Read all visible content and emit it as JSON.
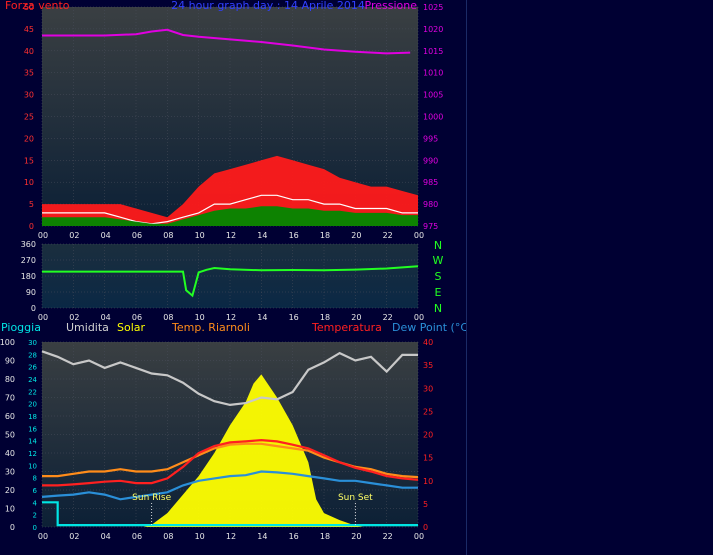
{
  "colors": {
    "background": "#000033",
    "panel_top": "#3a3f42",
    "panel_bottom": "#0b2540",
    "wind_gust": "#ff1a1a",
    "wind_avg": "#ffffff",
    "wind_speed": "#008800",
    "pressure": "#e000e0",
    "direction": "#22ff22",
    "humidity": "#c8c8c8",
    "solar": "#ffff00",
    "app_temp": "#ff8c1a",
    "temperature": "#ff2020",
    "dewpoint": "#2a8fd8",
    "rain": "#00e5e5"
  },
  "top": {
    "left_label": "Forza vento",
    "title": "24 hour graph day : 14 Aprile 2014",
    "right_label": "Pressione"
  },
  "direction": {
    "compass": [
      "N",
      "W",
      "S",
      "E",
      "N"
    ]
  },
  "bottom": {
    "legend": [
      "Pioggia",
      "Umidita",
      "Solar",
      "Temp. Riarnoli",
      "Temperatura",
      "Dew Point (°C)"
    ],
    "sunrise": "Sun Rise",
    "sunset": "Sun Set"
  },
  "chart_data": [
    {
      "type": "line",
      "title": "24 hour graph day : 14 Aprile 2014",
      "x_ticks": [
        "00",
        "02",
        "04",
        "06",
        "08",
        "10",
        "12",
        "14",
        "16",
        "18",
        "20",
        "22",
        "00"
      ],
      "y_left": {
        "label": "Forza vento",
        "ticks": [
          0,
          5,
          10,
          15,
          20,
          25,
          30,
          35,
          40,
          45,
          50
        ],
        "lim": [
          0,
          50
        ]
      },
      "y_right": {
        "label": "Pressione",
        "ticks": [
          975,
          980,
          985,
          990,
          995,
          1000,
          1005,
          1010,
          1015,
          1020,
          1025
        ],
        "lim": [
          975,
          1025
        ]
      },
      "grid": true,
      "series": [
        {
          "name": "Pressione",
          "axis": "right",
          "color": "#e000e0",
          "x": [
            0,
            2,
            4,
            6,
            7,
            8,
            9,
            10,
            12,
            14,
            16,
            18,
            20,
            22,
            23.5
          ],
          "y": [
            1018.5,
            1018.5,
            1018.5,
            1018.8,
            1019.4,
            1019.8,
            1018.6,
            1018.2,
            1017.6,
            1017.0,
            1016.2,
            1015.3,
            1014.8,
            1014.4,
            1014.6
          ]
        },
        {
          "name": "gust",
          "axis": "left",
          "color": "#ff1a1a",
          "x": [
            0,
            2,
            4,
            5,
            6,
            7,
            8,
            9,
            10,
            11,
            12,
            13,
            14,
            15,
            16,
            17,
            18,
            19,
            20,
            21,
            22,
            23,
            24
          ],
          "y": [
            5,
            5,
            5,
            5,
            4,
            3,
            2,
            5,
            9,
            12,
            13,
            14,
            15,
            16,
            15,
            14,
            13,
            11,
            10,
            9,
            9,
            8,
            7
          ]
        },
        {
          "name": "average",
          "axis": "left",
          "color": "#ffffff",
          "x": [
            0,
            2,
            4,
            5,
            6,
            7,
            8,
            9,
            10,
            11,
            12,
            13,
            14,
            15,
            16,
            17,
            18,
            19,
            20,
            21,
            22,
            23,
            24
          ],
          "y": [
            3,
            3,
            3,
            2,
            1,
            0.5,
            1,
            2,
            3,
            5,
            5,
            6,
            7,
            7,
            6,
            6,
            5,
            5,
            4,
            4,
            4,
            3,
            3
          ]
        },
        {
          "name": "speed",
          "axis": "left",
          "color": "#008800",
          "x": [
            0,
            2,
            4,
            5,
            6,
            7,
            8,
            9,
            10,
            11,
            12,
            13,
            14,
            15,
            16,
            17,
            18,
            19,
            20,
            21,
            22,
            23,
            24
          ],
          "y": [
            2,
            2,
            2,
            1.5,
            1,
            0.5,
            0.5,
            1.5,
            2.5,
            3.5,
            4,
            4,
            4.5,
            4.5,
            4,
            4,
            3.5,
            3.5,
            3,
            3,
            3,
            2.5,
            2.5
          ]
        }
      ]
    },
    {
      "type": "line",
      "x_ticks": [
        "00",
        "02",
        "04",
        "06",
        "08",
        "10",
        "12",
        "14",
        "16",
        "18",
        "20",
        "22",
        "00"
      ],
      "y_left": {
        "ticks": [
          0,
          90,
          180,
          270,
          360
        ],
        "lim": [
          0,
          360
        ]
      },
      "y_right": {
        "ticks": [
          "N",
          "W",
          "S",
          "E",
          "N"
        ]
      },
      "grid": true,
      "series": [
        {
          "name": "direction",
          "color": "#22ff22",
          "x": [
            0,
            9,
            9.2,
            9.6,
            10,
            10.5,
            11,
            12,
            14,
            16,
            18,
            20,
            22,
            24
          ],
          "y": [
            205,
            205,
            100,
            70,
            200,
            215,
            225,
            218,
            212,
            214,
            212,
            216,
            222,
            235
          ]
        }
      ]
    },
    {
      "type": "line",
      "x_ticks": [
        "00",
        "02",
        "04",
        "06",
        "08",
        "10",
        "12",
        "14",
        "16",
        "18",
        "20",
        "22",
        "00"
      ],
      "y_left_outer": {
        "label": "Umidita",
        "ticks": [
          0,
          10,
          20,
          30,
          40,
          50,
          60,
          70,
          80,
          90,
          100
        ],
        "lim": [
          0,
          100
        ]
      },
      "y_left_inner": {
        "label": "Pioggia",
        "ticks": [
          0,
          2,
          4,
          6,
          8,
          10,
          12,
          14,
          16,
          18,
          20,
          22,
          24,
          26,
          28,
          30
        ],
        "lim": [
          0,
          30
        ]
      },
      "y_right": {
        "label": "Temperatura",
        "ticks": [
          0,
          5,
          10,
          15,
          20,
          25,
          30,
          35,
          40
        ],
        "lim": [
          0,
          40
        ]
      },
      "annotations": [
        {
          "text": "Sun Rise",
          "x": 7
        },
        {
          "text": "Sun Set",
          "x": 20
        }
      ],
      "grid": true,
      "series": [
        {
          "name": "Umidita",
          "axis": "left_outer",
          "color": "#c8c8c8",
          "x": [
            0,
            1,
            2,
            3,
            4,
            5,
            6,
            7,
            8,
            9,
            10,
            11,
            12,
            13,
            14,
            15,
            16,
            17,
            18,
            19,
            20,
            21,
            22,
            23,
            24
          ],
          "y": [
            95,
            92,
            88,
            90,
            86,
            89,
            86,
            83,
            82,
            78,
            72,
            68,
            66,
            67,
            70,
            69,
            73,
            85,
            89,
            94,
            90,
            92,
            84,
            93,
            93
          ]
        },
        {
          "name": "Solar",
          "axis": "right",
          "color": "#ffff00",
          "x": [
            6.5,
            7,
            8,
            9,
            10,
            11,
            12,
            13,
            13.5,
            14,
            15,
            16,
            17,
            17.5,
            18,
            19,
            20,
            20.5
          ],
          "y": [
            0,
            0.5,
            3,
            7,
            11,
            16,
            22,
            27,
            31,
            33,
            28,
            22,
            14,
            6,
            3,
            1.5,
            0.3,
            0
          ]
        },
        {
          "name": "Temp. Riarnoli",
          "axis": "right",
          "color": "#ff8c1a",
          "x": [
            0,
            1,
            2,
            3,
            4,
            5,
            6,
            7,
            8,
            9,
            10,
            11,
            12,
            13,
            14,
            15,
            16,
            17,
            18,
            19,
            20,
            21,
            22,
            23,
            24
          ],
          "y": [
            11,
            11,
            11.5,
            12,
            12,
            12.5,
            12,
            12,
            12.5,
            14,
            15.5,
            17,
            17.8,
            18,
            18,
            17.5,
            17,
            16.5,
            15,
            14,
            13,
            12.5,
            11.5,
            11,
            10.8
          ]
        },
        {
          "name": "Temperatura",
          "axis": "right",
          "color": "#ff2020",
          "x": [
            0,
            1,
            2,
            3,
            4,
            5,
            6,
            7,
            8,
            9,
            10,
            11,
            12,
            13,
            14,
            15,
            16,
            17,
            18,
            19,
            20,
            21,
            22,
            23,
            24
          ],
          "y": [
            9,
            9,
            9.2,
            9.5,
            9.8,
            10,
            9.5,
            9.5,
            10.5,
            13,
            16,
            17.5,
            18.3,
            18.5,
            18.8,
            18.5,
            17.8,
            17,
            15.5,
            14,
            12.8,
            12,
            11,
            10.5,
            10.2
          ]
        },
        {
          "name": "Dew Point (°C)",
          "axis": "right",
          "color": "#2a8fd8",
          "x": [
            0,
            1,
            2,
            3,
            4,
            5,
            6,
            7,
            8,
            9,
            10,
            11,
            12,
            13,
            14,
            15,
            16,
            17,
            18,
            19,
            20,
            21,
            22,
            23,
            24
          ],
          "y": [
            6.5,
            6.8,
            7,
            7.5,
            7,
            6,
            6.5,
            7,
            7.5,
            9,
            10,
            10.5,
            11,
            11.2,
            12,
            11.8,
            11.5,
            11,
            10.5,
            10,
            10,
            9.5,
            9,
            8.5,
            8.5
          ]
        },
        {
          "name": "Pioggia",
          "axis": "left_inner",
          "color": "#00e5e5",
          "x": [
            0,
            1,
            1,
            24
          ],
          "y": [
            4,
            4,
            0.3,
            0.3
          ]
        }
      ]
    }
  ]
}
